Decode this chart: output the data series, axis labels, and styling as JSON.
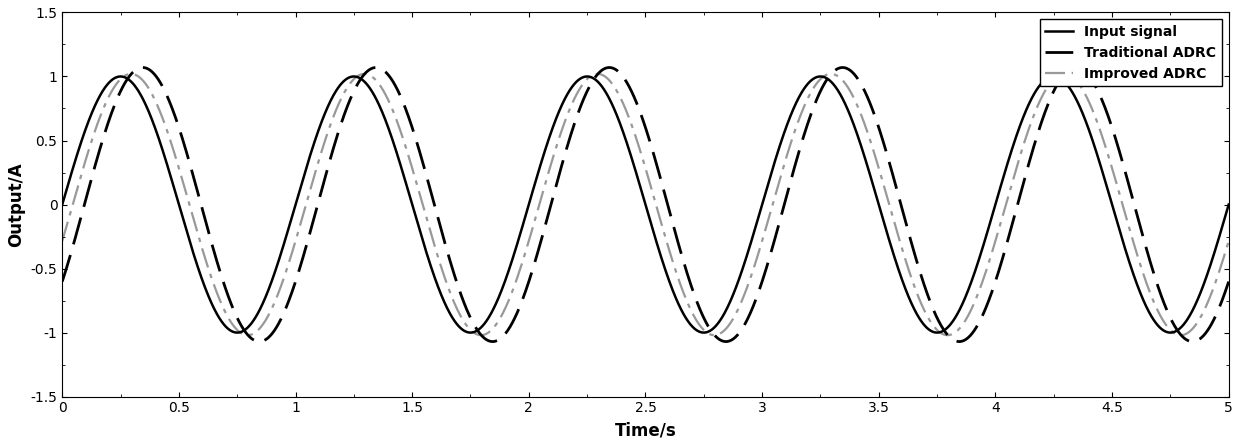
{
  "title": "",
  "xlabel": "Time/s",
  "ylabel": "Output/A",
  "xlim": [
    0,
    5
  ],
  "ylim": [
    -1.5,
    1.5
  ],
  "xticks": [
    0,
    0.5,
    1,
    1.5,
    2,
    2.5,
    3,
    3.5,
    4,
    4.5,
    5
  ],
  "yticks": [
    -1.5,
    -1,
    -0.5,
    0,
    0.5,
    1,
    1.5
  ],
  "input_color": "#000000",
  "trad_color": "#000000",
  "improved_color": "#999999",
  "input_lw": 1.8,
  "trad_lw": 2.0,
  "improved_lw": 1.6,
  "freq": 1.0,
  "amplitude": 1.0,
  "trad_phase_lag": 0.095,
  "trad_amplitude": 1.07,
  "improved_phase_lag": 0.045,
  "improved_amplitude": 1.02,
  "legend_labels": [
    "Input signal",
    "Traditional ADRC",
    "Improved ADRC"
  ],
  "legend_loc": "upper right",
  "background_color": "#ffffff",
  "grid": false
}
